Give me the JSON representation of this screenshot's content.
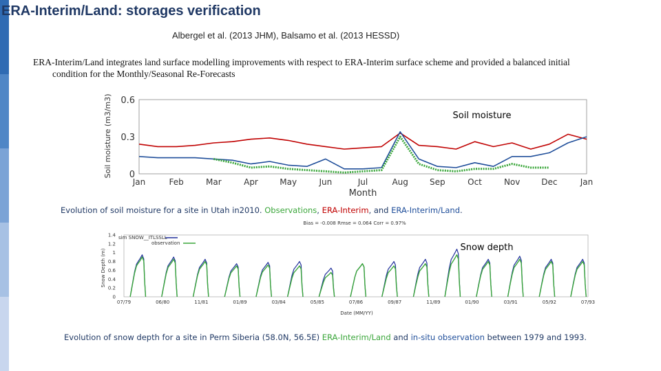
{
  "header": {
    "title": "ERA-Interim/Land: storages verification",
    "references": "Albergel et al. (2013 JHM), Balsamo et al. (2013 HESSD)",
    "body_line1": "ERA-Interim/Land integrates land surface modelling improvements with respect to ERA-Interim surface scheme and provided a balanced initial",
    "body_line2": "condition for the Monthly/Seasonal Re-Forecasts"
  },
  "colors": {
    "title": "#1f3864",
    "observation": "#3aa63a",
    "era_interim": "#c00000",
    "era_interim_land": "#1f4e9a",
    "sidebar": [
      "#2f6bb3",
      "#4f86c6",
      "#7ba3d6",
      "#a7c1e4",
      "#c8d6ee"
    ]
  },
  "captions": {
    "soil_prefix": "Evolution of soil moisture for a site in Utah in2010. ",
    "soil_obs": "Observations",
    "soil_sep1": ", ",
    "soil_erai": "ERA-Interim",
    "soil_sep2": ", and ",
    "soil_eral": "ERA-Interim/Land",
    "soil_end": ".",
    "snow_prefix": "Evolution of snow depth for a site in Perm Siberia (58.0N, 56.5E) ",
    "snow_eral": "ERA-Interim/Land",
    "snow_and": " and ",
    "snow_obs": "in-situ observation",
    "snow_end": " between 1979 and 1993."
  },
  "chart_data": [
    {
      "type": "line",
      "label": "Soil moisture",
      "xlabel": "Month",
      "ylabel": "Soil moisture (m3/m3)",
      "ylim": [
        0,
        0.6
      ],
      "yticks": [
        "0",
        "0.3",
        "0.6"
      ],
      "categories": [
        "Jan",
        "Feb",
        "Mar",
        "Apr",
        "May",
        "Jun",
        "Jul",
        "Aug",
        "Sep",
        "Oct",
        "Nov",
        "Dec",
        "Jan"
      ],
      "x": [
        0,
        0.5,
        1,
        1.5,
        2,
        2.5,
        3,
        3.5,
        4,
        4.5,
        5,
        5.5,
        6,
        6.5,
        7,
        7.5,
        8,
        8.5,
        9,
        9.5,
        10,
        10.5,
        11,
        11.5,
        12
      ],
      "series": [
        {
          "key": "erai",
          "color": "#c00000",
          "values": [
            0.24,
            0.22,
            0.22,
            0.23,
            0.25,
            0.26,
            0.28,
            0.29,
            0.27,
            0.24,
            0.22,
            0.2,
            0.21,
            0.22,
            0.33,
            0.23,
            0.22,
            0.2,
            0.26,
            0.22,
            0.25,
            0.2,
            0.24,
            0.32,
            0.28
          ]
        },
        {
          "key": "eral",
          "color": "#1f4e9a",
          "values": [
            0.14,
            0.13,
            0.13,
            0.13,
            0.12,
            0.11,
            0.08,
            0.1,
            0.07,
            0.06,
            0.12,
            0.04,
            0.04,
            0.05,
            0.34,
            0.12,
            0.06,
            0.05,
            0.09,
            0.06,
            0.14,
            0.14,
            0.17,
            0.25,
            0.3
          ]
        },
        {
          "key": "obs",
          "color": "#3aa63a",
          "values": [
            null,
            null,
            null,
            null,
            0.12,
            0.09,
            0.05,
            0.06,
            0.04,
            0.03,
            0.02,
            0.01,
            0.02,
            0.03,
            0.3,
            0.08,
            0.03,
            0.02,
            0.04,
            0.04,
            0.08,
            0.05,
            0.05,
            null,
            null
          ]
        }
      ]
    },
    {
      "type": "line",
      "label": "Snow depth",
      "stats": "Bias = -0.008  Rmse = 0.064  Corr = 0.97%",
      "legend": [
        "sim SNOW__ITLSSLL",
        "observation"
      ],
      "xlabel": "Date (MM/YY)",
      "ylabel": "Snow Depth (m)",
      "ylim": [
        0,
        1.4
      ],
      "yticks": [
        "0",
        "0.2",
        "0.4",
        "0.6",
        "0.8",
        "1",
        "1.2",
        "1.4"
      ],
      "categories": [
        "07/79",
        "06/80",
        "11/81",
        "01/89",
        "03/84",
        "05/85",
        "07/86",
        "09/87",
        "11/89",
        "01/90",
        "03/91",
        "05/92",
        "07/93"
      ],
      "x": [
        1979,
        1980,
        1981,
        1982,
        1983,
        1984,
        1985,
        1986,
        1987,
        1988,
        1989,
        1990,
        1991,
        1992,
        1993
      ],
      "series": [
        {
          "key": "sim",
          "color": "#1f2f9a",
          "values": [
            0.95,
            0.9,
            0.85,
            0.75,
            0.78,
            0.8,
            0.65,
            0.75,
            0.8,
            0.85,
            1.08,
            0.85,
            0.92,
            0.85,
            0.85
          ]
        },
        {
          "key": "obs",
          "color": "#3aa63a",
          "values": [
            0.9,
            0.85,
            0.8,
            0.7,
            0.72,
            0.7,
            0.55,
            0.75,
            0.7,
            0.75,
            0.95,
            0.8,
            0.85,
            0.8,
            0.8
          ]
        }
      ]
    }
  ]
}
